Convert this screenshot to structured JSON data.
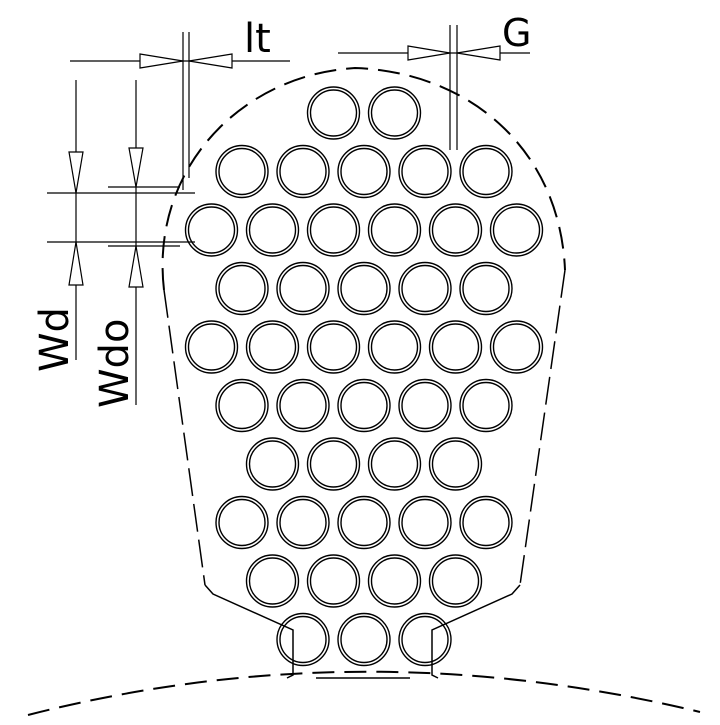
{
  "colors": {
    "line": "#000000",
    "background": "#ffffff"
  },
  "labels": {
    "lt": "lt",
    "g": "G",
    "wd": "Wd",
    "wdo": "Wdo"
  },
  "conductors": {
    "rows": [
      2,
      5,
      6,
      5,
      6,
      5,
      4,
      5,
      4,
      3
    ]
  }
}
